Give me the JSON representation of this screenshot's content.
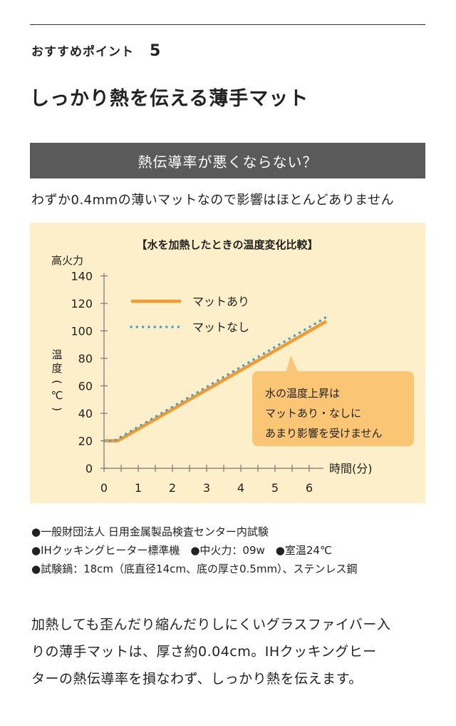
{
  "header": {
    "point_label": "おすすめポイント",
    "point_number": "5",
    "title": "しっかり熱を伝える薄手マット"
  },
  "banner": {
    "text": "熱伝導率が悪くならない？"
  },
  "subtitle": "わずか0.4mmの薄いマットなので影響はほとんどありません",
  "chart_data": {
    "type": "line",
    "title": "【水を加熱したときの温度変化比較】",
    "ylabel_top": "高火力",
    "ylabel": "温度(℃)",
    "xlabel": "時間(分)",
    "xlim": [
      0,
      6
    ],
    "ylim": [
      0,
      140
    ],
    "x_ticks": [
      0,
      1,
      2,
      3,
      4,
      5,
      6
    ],
    "y_ticks": [
      0,
      20,
      40,
      60,
      80,
      100,
      120,
      140
    ],
    "legend_position": "top-left",
    "series": [
      {
        "name": "マットあり",
        "style": "solid",
        "color": "#f39a33",
        "x": [
          0,
          0.4,
          6.5
        ],
        "y": [
          20,
          20,
          107
        ]
      },
      {
        "name": "マットなし",
        "style": "dotted",
        "color": "#4a9fd0",
        "x": [
          0,
          0.3,
          6.5
        ],
        "y": [
          20,
          20,
          110
        ]
      }
    ],
    "annotation": {
      "lines": [
        "水の温度上昇は",
        "マットあり・なしに",
        "あまり影響を受けません"
      ],
      "color": "#fbc576"
    }
  },
  "notes": [
    "●一般財団法人 日用金属製品検査センター内試験",
    "●IHクッキングヒーター標準機　●中火力：09w　●室温24℃",
    "●試験鍋：18cm（底直径14cm、底の厚さ0.5mm）、ステンレス鋼"
  ],
  "body_lines": [
    "加熱しても歪んだり縮んだりしにくいグラスファイバー入",
    "りの薄手マットは、厚さ約0.04cm。IHクッキングヒー",
    "ターの熱伝導率を損なわず、しっかり熱を伝えます。"
  ]
}
